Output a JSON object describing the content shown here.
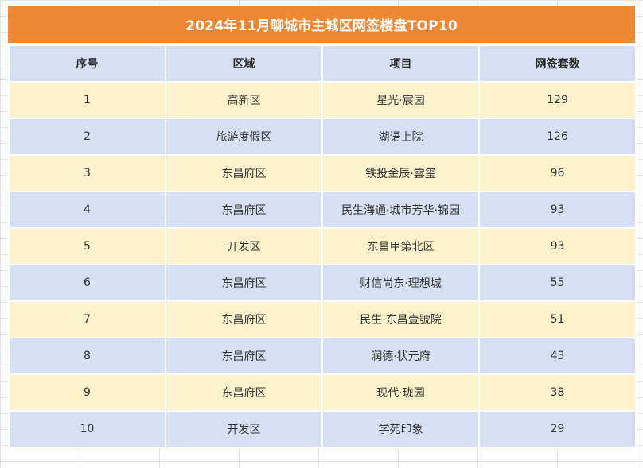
{
  "title": "2024年11月聊城市主城区网签楼盘TOP10",
  "colors": {
    "title_background": "#ee8731",
    "header_background": "#d6dff3",
    "odd_row_background": "#fdf2cc",
    "even_row_background": "#d6dff3"
  },
  "columns": [
    "序号",
    "区域",
    "项目",
    "网签套数"
  ],
  "rows": [
    {
      "rank": "1",
      "district": "高新区",
      "project": "星光·宸园",
      "units": "129"
    },
    {
      "rank": "2",
      "district": "旅游度假区",
      "project": "湖语上院",
      "units": "126"
    },
    {
      "rank": "3",
      "district": "东昌府区",
      "project": "铁投金辰·雲玺",
      "units": "96"
    },
    {
      "rank": "4",
      "district": "东昌府区",
      "project": "民生海通·城市芳华·锦园",
      "units": "93"
    },
    {
      "rank": "5",
      "district": "开发区",
      "project": "东昌甲第北区",
      "units": "93"
    },
    {
      "rank": "6",
      "district": "东昌府区",
      "project": "财信尚东·理想城",
      "units": "55"
    },
    {
      "rank": "7",
      "district": "东昌府区",
      "project": "民生·东昌壹號院",
      "units": "51"
    },
    {
      "rank": "8",
      "district": "东昌府区",
      "project": "润德·状元府",
      "units": "43"
    },
    {
      "rank": "9",
      "district": "东昌府区",
      "project": "现代·珑园",
      "units": "38"
    },
    {
      "rank": "10",
      "district": "开发区",
      "project": "学苑印象",
      "units": "29"
    }
  ]
}
